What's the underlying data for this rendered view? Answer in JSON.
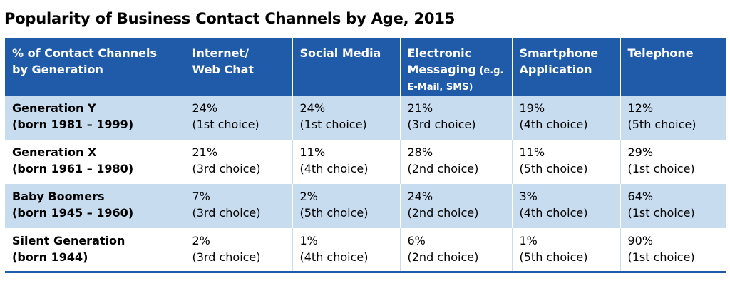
{
  "title": "Popularity of Business Contact Channels by Age, 2015",
  "headers": [
    {
      "l1": "% of Contact Channels",
      "l2": "by Generation",
      "l3": ""
    },
    {
      "l1": "Internet/",
      "l2": "Web Chat",
      "l3": ""
    },
    {
      "l1": "Social Media",
      "l2": "",
      "l3": ""
    },
    {
      "l1": "Electronic",
      "l2": "Messaging",
      "l2small": " (e.g.",
      "l3": "E-Mail, SMS)"
    },
    {
      "l1": "Smartphone",
      "l2": "Application",
      "l3": ""
    },
    {
      "l1": "Telephone",
      "l2": "",
      "l3": ""
    }
  ],
  "rows": [
    {
      "gen": "Generation Y",
      "born": "(born 1981 – 1999)",
      "cells": [
        {
          "pct": "24%",
          "choice": "(1st choice)"
        },
        {
          "pct": "24%",
          "choice": "(1st choice)"
        },
        {
          "pct": "21%",
          "choice": "(3rd choice)"
        },
        {
          "pct": "19%",
          "choice": "(4th choice)"
        },
        {
          "pct": "12%",
          "choice": "(5th choice)"
        }
      ]
    },
    {
      "gen": "Generation X",
      "born": "(born 1961 – 1980)",
      "cells": [
        {
          "pct": "21%",
          "choice": "(3rd choice)"
        },
        {
          "pct": "11%",
          "choice": "(4th choice)"
        },
        {
          "pct": "28%",
          "choice": "(2nd choice)"
        },
        {
          "pct": "11%",
          "choice": "(5th choice)"
        },
        {
          "pct": "29%",
          "choice": "(1st choice)"
        }
      ]
    },
    {
      "gen": "Baby Boomers",
      "born": "(born 1945 – 1960)",
      "cells": [
        {
          "pct": "7%",
          "choice": "(3rd choice)"
        },
        {
          "pct": "2%",
          "choice": "(5th choice)"
        },
        {
          "pct": "24%",
          "choice": "(2nd choice)"
        },
        {
          "pct": "3%",
          "choice": "(4th choice)"
        },
        {
          "pct": "64%",
          "choice": "(1st choice)"
        }
      ]
    },
    {
      "gen": "Silent Generation",
      "born": "(born 1944)",
      "cells": [
        {
          "pct": "2%",
          "choice": "(3rd choice)"
        },
        {
          "pct": "1%",
          "choice": "(4th choice)"
        },
        {
          "pct": "6%",
          "choice": "(2nd choice)"
        },
        {
          "pct": "1%",
          "choice": "(5th choice)"
        },
        {
          "pct": "90%",
          "choice": "(1st choice)"
        }
      ]
    }
  ],
  "colors": {
    "header_bg": "#1f5ba8",
    "shade_bg": "#c8dcf0"
  }
}
